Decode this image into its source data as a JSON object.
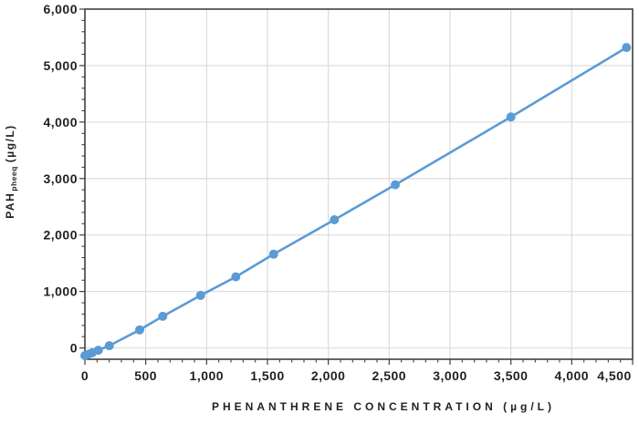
{
  "chart_data": {
    "type": "line",
    "title": "",
    "xlabel": "PHENANTHRENE CONCENTRATION (µg/L)",
    "ylabel": "PAHpheeq (µg/L)",
    "ylabel_parts": {
      "main": "PAH",
      "sub": "pheeq",
      "unit": "(µg/L)"
    },
    "x": [
      0,
      10,
      30,
      60,
      110,
      200,
      450,
      640,
      950,
      1240,
      1550,
      2050,
      2550,
      3500,
      4450
    ],
    "y": [
      -135,
      -125,
      -110,
      -85,
      -40,
      40,
      320,
      560,
      930,
      1260,
      1660,
      2270,
      2890,
      4090,
      5320
    ],
    "xlim": [
      0,
      4500
    ],
    "ylim": [
      -200,
      6000
    ],
    "x_major_ticks": [
      0,
      500,
      1000,
      1500,
      2000,
      2500,
      3000,
      3500,
      4000,
      4500
    ],
    "x_tick_labels": [
      "0",
      "500",
      "1,000",
      "1,500",
      "2,000",
      "2,500",
      "3,000",
      "3,500",
      "4,000",
      "4,500"
    ],
    "y_major_ticks": [
      0,
      1000,
      2000,
      3000,
      4000,
      5000,
      6000
    ],
    "y_tick_labels": [
      "0",
      "1,000",
      "2,000",
      "3,000",
      "4,000",
      "5,000",
      "6,000"
    ],
    "x_minor_step": 100,
    "y_minor_step": 200,
    "grid": true,
    "legend": null,
    "marker": "circle",
    "colors": {
      "series": "#5B9BD5",
      "gridline": "#D9D9D9",
      "axis": "#404040",
      "text": "#231F20",
      "background": "#FFFFFF"
    }
  }
}
